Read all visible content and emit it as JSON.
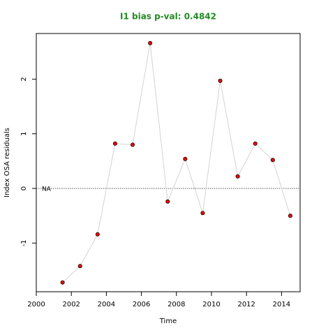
{
  "chart_data": {
    "type": "line",
    "title": "I1 bias p-val: 0.4842",
    "title_color": "#228b22",
    "x_label": "Time",
    "y_label": "Index OSA residuals",
    "x": [
      2001.5,
      2002.5,
      2003.5,
      2004.5,
      2005.5,
      2006.5,
      2007.5,
      2008.5,
      2009.5,
      2010.5,
      2011.5,
      2012.5,
      2013.5,
      2014.5
    ],
    "series": [
      {
        "color": "#d3d3d3",
        "marker_color": "#ff0000",
        "values": [
          -1.72,
          -1.42,
          -0.84,
          0.82,
          0.8,
          2.66,
          -0.24,
          0.54,
          -0.45,
          1.97,
          0.22,
          0.82,
          0.52,
          -0.5
        ]
      }
    ],
    "reference_line": 0,
    "annotation": "NA",
    "xlim": [
      2000,
      2015.06
    ],
    "ylim": [
      -1.89,
      2.835
    ],
    "xticks": [
      2000,
      2002,
      2004,
      2006,
      2008,
      2010,
      2012,
      2014
    ],
    "yticks": [
      -1,
      0,
      1,
      2
    ],
    "grid": false
  }
}
